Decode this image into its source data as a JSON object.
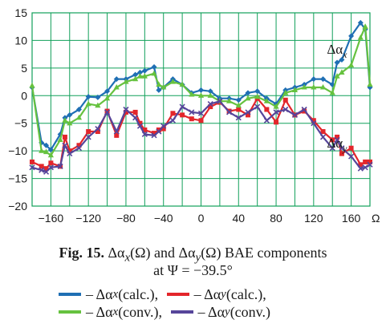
{
  "chart_data": {
    "type": "line",
    "xlabel": "Ω",
    "xlim": [
      -180,
      180
    ],
    "ylim": [
      -20,
      15
    ],
    "x_ticks": [
      "−160",
      "−120",
      "−80",
      "−40",
      "0",
      "40",
      "80",
      "120",
      "160"
    ],
    "x_tick_values": [
      -160,
      -120,
      -80,
      -40,
      0,
      40,
      80,
      120,
      160
    ],
    "y_ticks": [
      "15",
      "10",
      "5",
      "0",
      "−5",
      "−10",
      "−15",
      "−20"
    ],
    "y_tick_values": [
      15,
      10,
      5,
      0,
      -5,
      -10,
      -15,
      -20
    ],
    "grid": true,
    "annotations": [
      {
        "text": "Δα",
        "sub": "x",
        "x": 150,
        "y": 7.6
      },
      {
        "text": "Δα",
        "sub": "y",
        "x": 150,
        "y": -9.4
      }
    ],
    "x": [
      -180,
      -170,
      -165,
      -160,
      -150,
      -145,
      -140,
      -130,
      -120,
      -110,
      -100,
      -90,
      -80,
      -70,
      -65,
      -60,
      -50,
      -45,
      -40,
      -30,
      -20,
      -10,
      0,
      10,
      20,
      30,
      40,
      50,
      60,
      70,
      80,
      90,
      100,
      110,
      120,
      130,
      140,
      145,
      150,
      160,
      170,
      175,
      180
    ],
    "series": [
      {
        "name": "Δαx (calc.)",
        "color": "#1f6fb4",
        "marker": "diamond",
        "values": [
          1.5,
          -8.5,
          -9.0,
          -9.8,
          -7.0,
          -4.0,
          -3.5,
          -2.5,
          -0.2,
          -0.3,
          0.8,
          3.0,
          3.0,
          3.8,
          4.2,
          4.5,
          5.2,
          1.0,
          1.5,
          3.0,
          2.0,
          0.5,
          1.0,
          0.8,
          -0.5,
          -0.5,
          -0.8,
          0.5,
          0.8,
          -0.5,
          -1.5,
          1.0,
          1.5,
          2.0,
          3.0,
          3.0,
          2.0,
          6.0,
          6.5,
          10.8,
          13.2,
          12.0,
          1.5
        ]
      },
      {
        "name": "Δαy (calc.)",
        "color": "#e3262b",
        "marker": "square",
        "values": [
          -12.0,
          -12.8,
          -13.2,
          -12.2,
          -12.8,
          -7.5,
          -10.0,
          -9.0,
          -6.5,
          -6.5,
          -2.8,
          -7.2,
          -3.0,
          -3.0,
          -5.0,
          -6.2,
          -6.8,
          -6.2,
          -6.0,
          -3.2,
          -3.5,
          -4.2,
          -4.5,
          -2.0,
          -1.2,
          -2.8,
          -2.5,
          -3.5,
          -0.5,
          -2.5,
          -4.8,
          -0.8,
          -3.5,
          -2.8,
          -4.5,
          -6.5,
          -8.0,
          -7.5,
          -10.5,
          -9.5,
          -12.5,
          -12.0,
          -12.0
        ]
      },
      {
        "name": "Δαx (conv.)",
        "color": "#66c23f",
        "marker": "triangle",
        "values": [
          1.8,
          -10.0,
          -10.2,
          -10.8,
          -8.0,
          -4.5,
          -5.0,
          -4.0,
          -1.5,
          -1.8,
          -0.5,
          1.5,
          2.5,
          3.0,
          3.5,
          3.5,
          4.0,
          2.0,
          1.5,
          2.5,
          2.0,
          0.2,
          0.0,
          0.0,
          -1.0,
          -1.0,
          -1.8,
          -0.5,
          -0.2,
          -1.0,
          -2.0,
          0.5,
          1.0,
          1.5,
          1.5,
          1.5,
          0.5,
          3.5,
          4.2,
          5.5,
          10.5,
          12.5,
          2.0
        ]
      },
      {
        "name": "Δαy (conv.)",
        "color": "#56459a",
        "marker": "cross",
        "values": [
          -13.0,
          -13.5,
          -13.8,
          -13.0,
          -12.8,
          -9.0,
          -10.5,
          -9.5,
          -7.5,
          -6.0,
          -3.0,
          -6.5,
          -2.5,
          -4.0,
          -5.5,
          -7.0,
          -7.2,
          -6.5,
          -5.5,
          -4.5,
          -2.0,
          -3.0,
          -3.2,
          -1.5,
          -1.0,
          -3.0,
          -4.0,
          -3.0,
          -2.0,
          -4.5,
          -3.0,
          -2.5,
          -3.5,
          -2.5,
          -5.0,
          -7.5,
          -9.5,
          -8.0,
          -9.5,
          -11.0,
          -13.2,
          -13.0,
          -12.5
        ]
      }
    ]
  },
  "caption": {
    "fig": "Fig. 15.",
    "l1_a": "Δα",
    "l1_a_sub": "x",
    "l1_a_tail": "(Ω) and Δα",
    "l1_b_sub": "y",
    "l1_b_tail": "(Ω) BAE components",
    "l2": "at Ψ = −39.5°"
  },
  "legend": {
    "item1": {
      "pre": "– Δα",
      "sub": "x",
      "post": " (calc.),"
    },
    "item2": {
      "pre": "– Δα",
      "sub": "y",
      "post": " (calc.),"
    },
    "item3": {
      "pre": "– Δα",
      "sub": "x",
      "post": " (conv.),"
    },
    "item4": {
      "pre": "– Δα",
      "sub": "y",
      "post": " (conv.)"
    }
  }
}
